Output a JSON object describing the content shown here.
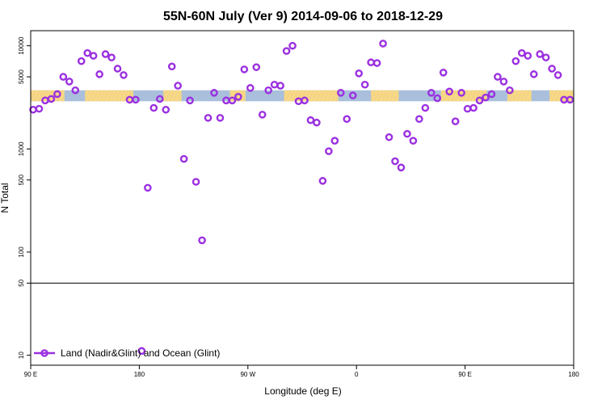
{
  "chart_data": {
    "type": "scatter",
    "title": "55N-60N July (Ver 9)   2014-09-06 to 2018-12-29",
    "xlabel": "Longitude (deg E)",
    "ylabel": "N Total",
    "x_ticks": [
      {
        "value": 90,
        "label": "90 E"
      },
      {
        "value": 180,
        "label": "180"
      },
      {
        "value": 270,
        "label": "90 W"
      },
      {
        "value": 360,
        "label": "0"
      },
      {
        "value": 450,
        "label": "90 E"
      },
      {
        "value": 540,
        "label": "180"
      }
    ],
    "y_ticks": [
      {
        "value": 10,
        "label": "10"
      },
      {
        "value": 50,
        "label": "50"
      },
      {
        "value": 100,
        "label": "100"
      },
      {
        "value": 500,
        "label": "500"
      },
      {
        "value": 1000,
        "label": "1000"
      },
      {
        "value": 5000,
        "label": "5000"
      },
      {
        "value": 10000,
        "label": "10000"
      }
    ],
    "xlim": [
      90,
      540
    ],
    "ylim": [
      8,
      14000
    ],
    "y_scale": "log",
    "reference_line": 50,
    "land_ocean_band": {
      "y_range": [
        2900,
        3700
      ],
      "land_color": "#ffd97a",
      "ocean_color": "#a9bfdc"
    },
    "legend": {
      "position": "bottom-left",
      "entries": [
        "Land (Nadir&Glint) and Ocean (Glint)"
      ]
    },
    "series": [
      {
        "name": "Land (Nadir&Glint) and Ocean (Glint)",
        "color": "#9b30e0",
        "marker": "open-circle",
        "points": [
          [
            92,
            2400
          ],
          [
            97,
            2450
          ],
          [
            102,
            2950
          ],
          [
            107,
            3050
          ],
          [
            112,
            3400
          ],
          [
            117,
            5000
          ],
          [
            122,
            4500
          ],
          [
            127,
            3700
          ],
          [
            132,
            7100
          ],
          [
            137,
            8500
          ],
          [
            142,
            8000
          ],
          [
            147,
            5300
          ],
          [
            152,
            8300
          ],
          [
            157,
            7700
          ],
          [
            162,
            6000
          ],
          [
            167,
            5200
          ],
          [
            172,
            3000
          ],
          [
            177,
            3000
          ],
          [
            182,
            11
          ],
          [
            187,
            420
          ],
          [
            192,
            2500
          ],
          [
            197,
            3050
          ],
          [
            202,
            2400
          ],
          [
            207,
            6300
          ],
          [
            212,
            4100
          ],
          [
            217,
            800
          ],
          [
            222,
            2950
          ],
          [
            227,
            480
          ],
          [
            232,
            130
          ],
          [
            237,
            2000
          ],
          [
            242,
            3500
          ],
          [
            247,
            2000
          ],
          [
            252,
            2950
          ],
          [
            257,
            2950
          ],
          [
            262,
            3200
          ],
          [
            267,
            5900
          ],
          [
            272,
            3900
          ],
          [
            277,
            6200
          ],
          [
            282,
            2150
          ],
          [
            287,
            3700
          ],
          [
            292,
            4200
          ],
          [
            297,
            4100
          ],
          [
            302,
            8900
          ],
          [
            307,
            10000
          ],
          [
            312,
            2900
          ],
          [
            317,
            2950
          ],
          [
            322,
            1900
          ],
          [
            327,
            1800
          ],
          [
            332,
            490
          ],
          [
            337,
            950
          ],
          [
            342,
            1200
          ],
          [
            347,
            3500
          ],
          [
            352,
            1950
          ],
          [
            357,
            3300
          ],
          [
            362,
            5400
          ],
          [
            367,
            4200
          ],
          [
            372,
            6900
          ],
          [
            377,
            6800
          ],
          [
            382,
            10500
          ],
          [
            387,
            1300
          ],
          [
            392,
            760
          ],
          [
            397,
            660
          ],
          [
            402,
            1400
          ],
          [
            407,
            1200
          ],
          [
            412,
            1950
          ],
          [
            417,
            2500
          ],
          [
            422,
            3500
          ],
          [
            427,
            3100
          ],
          [
            432,
            5500
          ],
          [
            437,
            3600
          ],
          [
            442,
            1850
          ],
          [
            447,
            3500
          ],
          [
            452,
            2450
          ],
          [
            457,
            2500
          ],
          [
            462,
            2950
          ],
          [
            467,
            3150
          ],
          [
            472,
            3400
          ],
          [
            477,
            5000
          ],
          [
            482,
            4500
          ],
          [
            487,
            3700
          ],
          [
            492,
            7100
          ],
          [
            497,
            8500
          ],
          [
            502,
            8000
          ],
          [
            507,
            5300
          ],
          [
            512,
            8300
          ],
          [
            517,
            7700
          ],
          [
            522,
            6000
          ],
          [
            527,
            5200
          ],
          [
            532,
            3000
          ],
          [
            537,
            3000
          ]
        ]
      }
    ]
  }
}
